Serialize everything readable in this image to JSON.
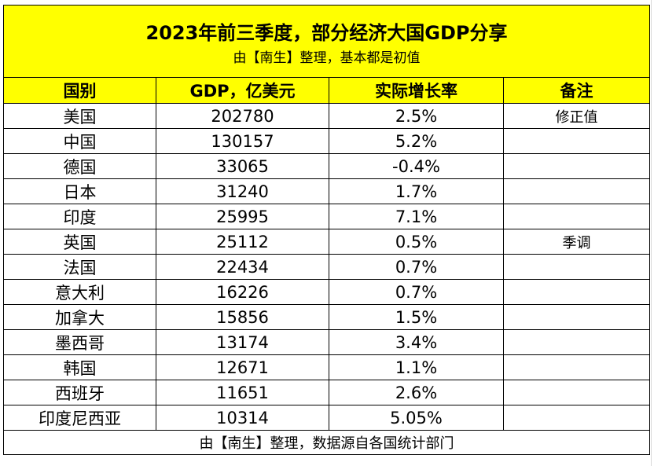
{
  "title": "2023年前三季度，部分经济大国GDP分享",
  "subtitle": "由【南生】整理，基本都是初值",
  "headers": [
    "国别",
    "GDP，亿美元",
    "实际增长率",
    "备注"
  ],
  "rows": [
    {
      "country": "美国",
      "gdp": "202780",
      "growth": "2.5%",
      "note": "修正值"
    },
    {
      "country": "中国",
      "gdp": "130157",
      "growth": "5.2%",
      "note": ""
    },
    {
      "country": "德国",
      "gdp": "33065",
      "growth": "-0.4%",
      "note": ""
    },
    {
      "country": "日本",
      "gdp": "31240",
      "growth": "1.7%",
      "note": ""
    },
    {
      "country": "印度",
      "gdp": "25995",
      "growth": "7.1%",
      "note": ""
    },
    {
      "country": "英国",
      "gdp": "25112",
      "growth": "0.5%",
      "note": "季调"
    },
    {
      "country": "法国",
      "gdp": "22434",
      "growth": "0.7%",
      "note": ""
    },
    {
      "country": "意大利",
      "gdp": "16226",
      "growth": "0.7%",
      "note": ""
    },
    {
      "country": "加拿大",
      "gdp": "15856",
      "growth": "1.5%",
      "note": ""
    },
    {
      "country": "墨西哥",
      "gdp": "13174",
      "growth": "3.4%",
      "note": ""
    },
    {
      "country": "韩国",
      "gdp": "12671",
      "growth": "1.1%",
      "note": ""
    },
    {
      "country": "西班牙",
      "gdp": "11651",
      "growth": "2.6%",
      "note": ""
    },
    {
      "country": "印度尼西亚",
      "gdp": "10314",
      "growth": "5.05%",
      "note": ""
    }
  ],
  "footer": "由【南生】整理，数据源自各国统计部门",
  "colors": {
    "header_bg": "#ffff00",
    "border": "#000000"
  }
}
